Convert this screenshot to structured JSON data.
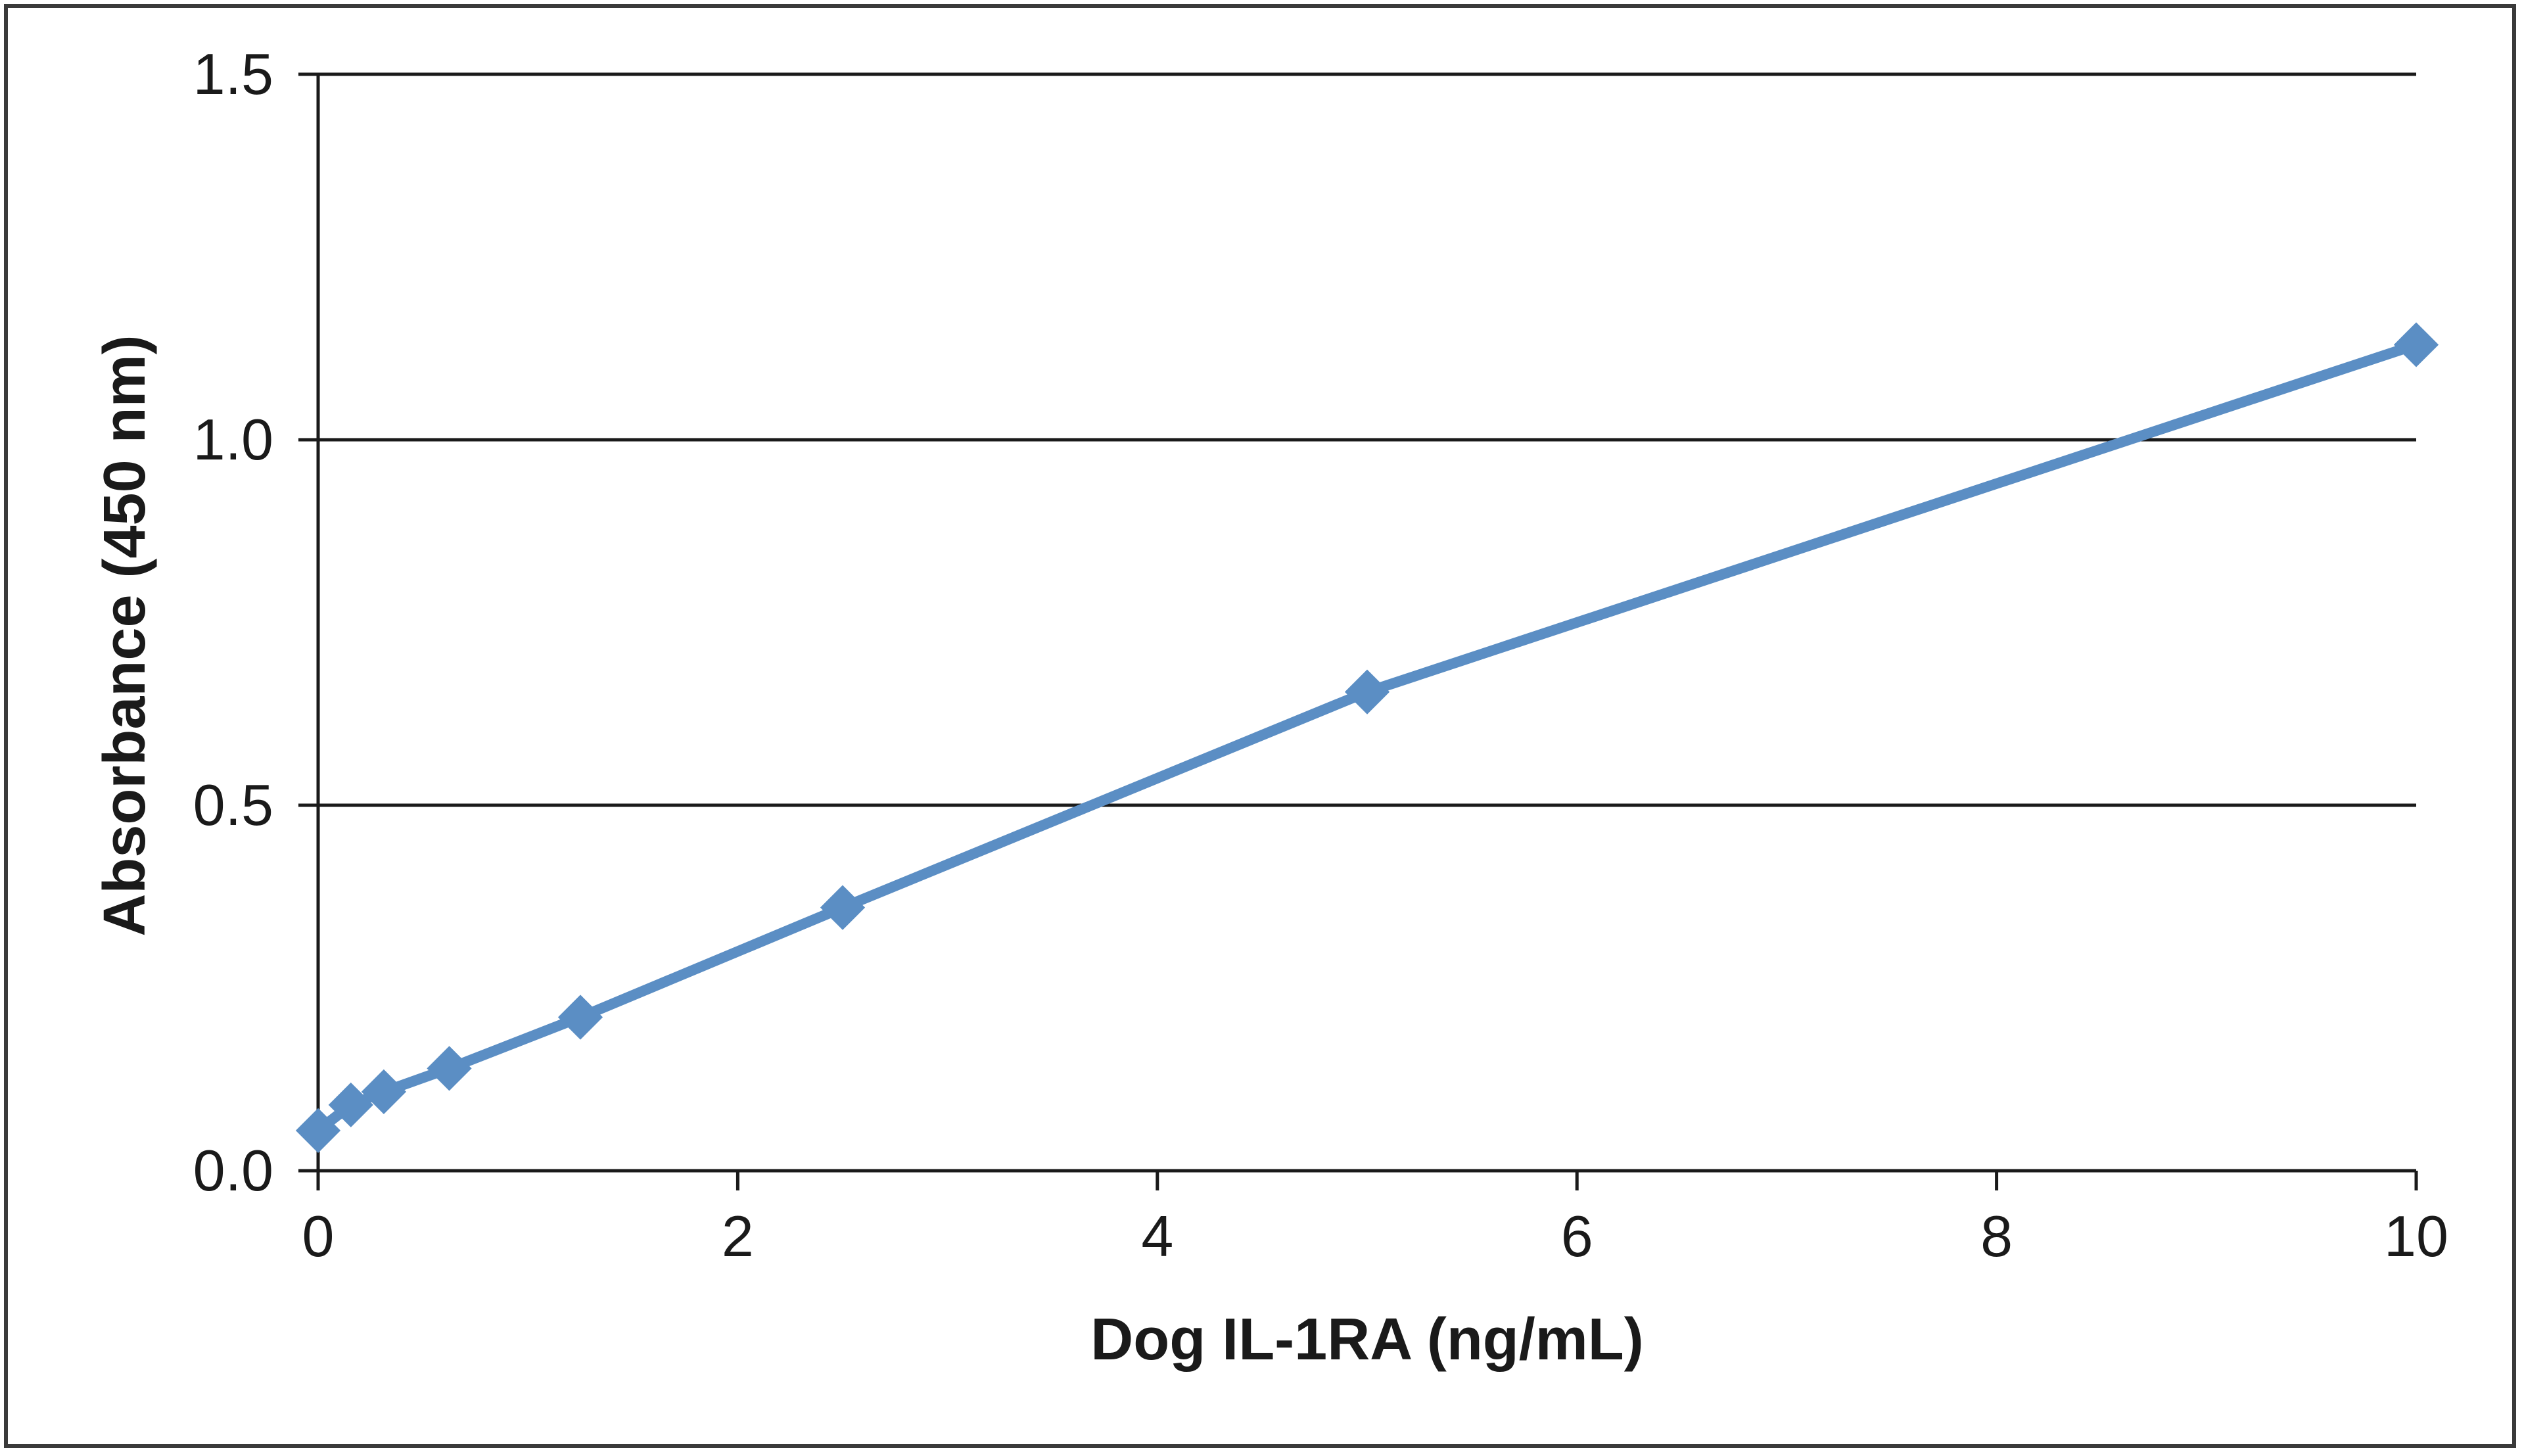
{
  "chart_data": {
    "type": "line",
    "title": "",
    "xlabel": "Dog IL-1RA (ng/mL)",
    "ylabel": "Absorbance (450 nm)",
    "xlim": [
      0,
      10
    ],
    "ylim": [
      0,
      1.5
    ],
    "x_ticks": [
      "0",
      "2",
      "4",
      "6",
      "8",
      "10"
    ],
    "y_ticks": [
      "0.0",
      "0.5",
      "1.0",
      "1.5"
    ],
    "grid": "horizontal major gridlines",
    "legend": "none",
    "series": [
      {
        "color": "#5b8ec4",
        "marker": "diamond",
        "points": [
          {
            "x": 0,
            "y": 0.055
          },
          {
            "x": 0.156,
            "y": 0.09
          },
          {
            "x": 0.313,
            "y": 0.108
          },
          {
            "x": 0.625,
            "y": 0.14
          },
          {
            "x": 1.25,
            "y": 0.21
          },
          {
            "x": 2.5,
            "y": 0.36
          },
          {
            "x": 5,
            "y": 0.655
          },
          {
            "x": 10,
            "y": 1.13
          }
        ]
      }
    ]
  }
}
